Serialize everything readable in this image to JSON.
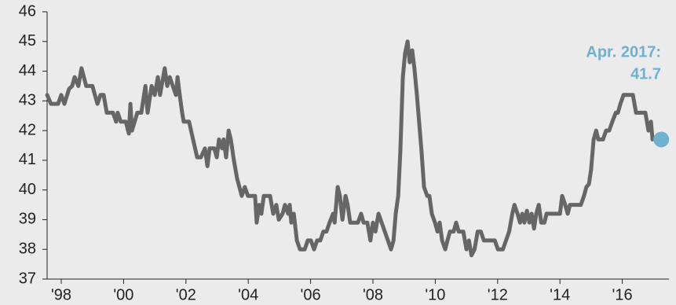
{
  "chart_data": {
    "type": "line",
    "x": [
      1997.55,
      1997.67,
      1997.9,
      1998.0,
      1998.1,
      1998.25,
      1998.35,
      1998.43,
      1998.55,
      1998.65,
      1998.8,
      1999.0,
      1999.16,
      1999.26,
      1999.36,
      1999.46,
      1999.66,
      1999.76,
      1999.81,
      1999.91,
      2000.07,
      2000.17,
      2000.22,
      2000.27,
      2000.44,
      2000.57,
      2000.7,
      2000.77,
      2000.9,
      2001.0,
      2001.1,
      2001.17,
      2001.32,
      2001.4,
      2001.48,
      2001.58,
      2001.68,
      2001.73,
      2001.8,
      2001.88,
      2001.93,
      2002.1,
      2002.23,
      2002.36,
      2002.48,
      2002.61,
      2002.69,
      2002.76,
      2002.91,
      2002.99,
      2003.06,
      2003.16,
      2003.21,
      2003.29,
      2003.37,
      2003.44,
      2003.54,
      2003.64,
      2003.79,
      2003.89,
      2003.99,
      2004.15,
      2004.22,
      2004.27,
      2004.35,
      2004.42,
      2004.5,
      2004.7,
      2004.8,
      2004.9,
      2004.98,
      2005.1,
      2005.18,
      2005.28,
      2005.33,
      2005.38,
      2005.46,
      2005.56,
      2005.66,
      2005.81,
      2005.91,
      2006.01,
      2006.11,
      2006.21,
      2006.31,
      2006.41,
      2006.51,
      2006.61,
      2006.72,
      2006.77,
      2006.87,
      2006.94,
      2007.02,
      2007.12,
      2007.19,
      2007.27,
      2007.42,
      2007.52,
      2007.62,
      2007.7,
      2007.82,
      2007.92,
      2008.0,
      2008.08,
      2008.18,
      2008.28,
      2008.38,
      2008.48,
      2008.58,
      2008.66,
      2008.73,
      2008.81,
      2008.88,
      2008.96,
      2009.03,
      2009.11,
      2009.18,
      2009.26,
      2009.33,
      2009.41,
      2009.48,
      2009.56,
      2009.64,
      2009.74,
      2009.81,
      2009.89,
      2009.99,
      2010.07,
      2010.14,
      2010.22,
      2010.32,
      2010.39,
      2010.47,
      2010.59,
      2010.67,
      2010.75,
      2010.9,
      2011.0,
      2011.08,
      2011.16,
      2011.26,
      2011.36,
      2011.46,
      2011.56,
      2011.76,
      2011.91,
      2012.01,
      2012.17,
      2012.27,
      2012.37,
      2012.47,
      2012.54,
      2012.64,
      2012.72,
      2012.79,
      2012.86,
      2012.94,
      2013.02,
      2013.09,
      2013.17,
      2013.24,
      2013.32,
      2013.4,
      2013.5,
      2013.57,
      2013.67,
      2013.92,
      2014.0,
      2014.07,
      2014.17,
      2014.25,
      2014.32,
      2014.52,
      2014.67,
      2014.77,
      2014.85,
      2014.93,
      2015.0,
      2015.08,
      2015.16,
      2015.23,
      2015.38,
      2015.48,
      2015.58,
      2015.68,
      2015.79,
      2015.86,
      2015.94,
      2016.04,
      2016.19,
      2016.34,
      2016.44,
      2016.59,
      2016.74,
      2016.84,
      2016.92,
      2016.97
    ],
    "series": [
      {
        "color": "#666666",
        "values": [
          43.2,
          42.9,
          42.9,
          43.2,
          42.9,
          43.4,
          43.5,
          43.8,
          43.5,
          44.1,
          43.5,
          43.5,
          42.9,
          43.2,
          43.2,
          42.6,
          42.6,
          42.3,
          42.6,
          42.3,
          42.3,
          41.9,
          42.9,
          42.0,
          42.6,
          42.6,
          43.5,
          42.6,
          43.5,
          43.2,
          43.8,
          43.2,
          44.1,
          43.5,
          43.8,
          43.5,
          43.2,
          43.8,
          43.2,
          42.6,
          42.3,
          42.3,
          41.7,
          41.1,
          41.1,
          41.4,
          40.8,
          41.4,
          41.4,
          41.1,
          41.7,
          41.4,
          41.7,
          41.1,
          42.0,
          41.7,
          41.0,
          40.4,
          39.8,
          40.1,
          39.8,
          39.8,
          39.8,
          38.9,
          39.5,
          39.2,
          39.8,
          39.8,
          39.2,
          39.5,
          39.0,
          39.2,
          39.5,
          39.2,
          39.5,
          38.9,
          39.2,
          38.3,
          38.0,
          38.0,
          38.3,
          38.3,
          38.0,
          38.3,
          38.3,
          38.6,
          38.6,
          38.9,
          39.2,
          38.9,
          40.1,
          39.8,
          39.0,
          39.8,
          39.5,
          38.9,
          38.9,
          38.9,
          39.2,
          38.9,
          38.9,
          38.3,
          38.9,
          38.6,
          39.2,
          38.9,
          38.6,
          38.3,
          38.0,
          38.3,
          39.2,
          39.8,
          41.3,
          43.8,
          44.6,
          45.0,
          44.3,
          44.7,
          44.1,
          43.2,
          42.3,
          41.3,
          40.1,
          39.8,
          39.8,
          39.2,
          38.9,
          38.6,
          38.9,
          38.3,
          38.0,
          38.3,
          38.6,
          38.6,
          38.9,
          38.6,
          38.6,
          38.0,
          38.3,
          37.8,
          38.0,
          38.6,
          38.6,
          38.3,
          38.3,
          38.3,
          38.0,
          38.0,
          38.3,
          38.6,
          39.2,
          39.5,
          39.2,
          38.9,
          39.2,
          38.9,
          39.3,
          38.9,
          39.2,
          38.7,
          39.2,
          39.5,
          38.9,
          38.9,
          39.2,
          39.2,
          39.2,
          39.2,
          39.8,
          39.5,
          39.2,
          39.5,
          39.5,
          39.5,
          39.8,
          40.1,
          40.2,
          40.7,
          41.7,
          42.0,
          41.7,
          41.7,
          42.0,
          42.0,
          42.3,
          42.6,
          42.6,
          42.9,
          43.2,
          43.2,
          43.2,
          42.6,
          42.6,
          42.6,
          42.0,
          42.3,
          41.7
        ]
      }
    ],
    "highlight": {
      "x": 2017.25,
      "value": 41.7,
      "label": "Apr. 2017:",
      "color": "#6fb1d1"
    },
    "xlim": [
      1997.5,
      2017.5
    ],
    "xticks": [
      {
        "value": 1998,
        "label": "'98"
      },
      {
        "value": 2000,
        "label": "'00"
      },
      {
        "value": 2002,
        "label": "'02"
      },
      {
        "value": 2004,
        "label": "'04"
      },
      {
        "value": 2006,
        "label": "'06"
      },
      {
        "value": 2008,
        "label": "'08"
      },
      {
        "value": 2010,
        "label": "'10"
      },
      {
        "value": 2012,
        "label": "'12"
      },
      {
        "value": 2014,
        "label": "'14"
      },
      {
        "value": 2016,
        "label": "'16"
      }
    ],
    "ylim": [
      37,
      46
    ],
    "yticks": [
      37,
      38,
      39,
      40,
      41,
      42,
      43,
      44,
      45,
      46
    ],
    "grid": false
  }
}
